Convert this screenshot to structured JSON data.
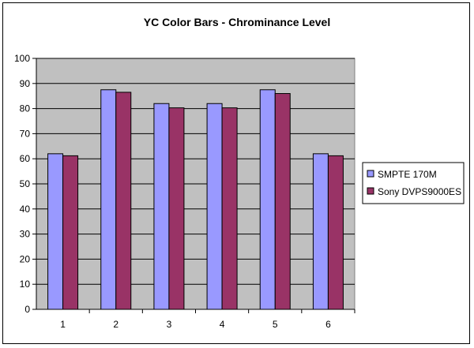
{
  "chart_data": {
    "type": "bar",
    "title": "YC Color Bars - Chrominance Level",
    "xlabel": "",
    "ylabel": "",
    "categories": [
      "1",
      "2",
      "3",
      "4",
      "5",
      "6"
    ],
    "series": [
      {
        "name": "SMPTE 170M",
        "values": [
          62,
          87.5,
          82,
          82,
          87.5,
          62
        ],
        "color": "#9999ff"
      },
      {
        "name": "Sony DVPS9000ES",
        "values": [
          61.2,
          86.5,
          80.3,
          80.3,
          86,
          61.2
        ],
        "color": "#993366"
      }
    ],
    "ylim": [
      0,
      100
    ],
    "yticks": [
      0,
      10,
      20,
      30,
      40,
      50,
      60,
      70,
      80,
      90,
      100
    ],
    "grid": true,
    "legend_position": "right",
    "plot_background": "#c0c0c0"
  }
}
